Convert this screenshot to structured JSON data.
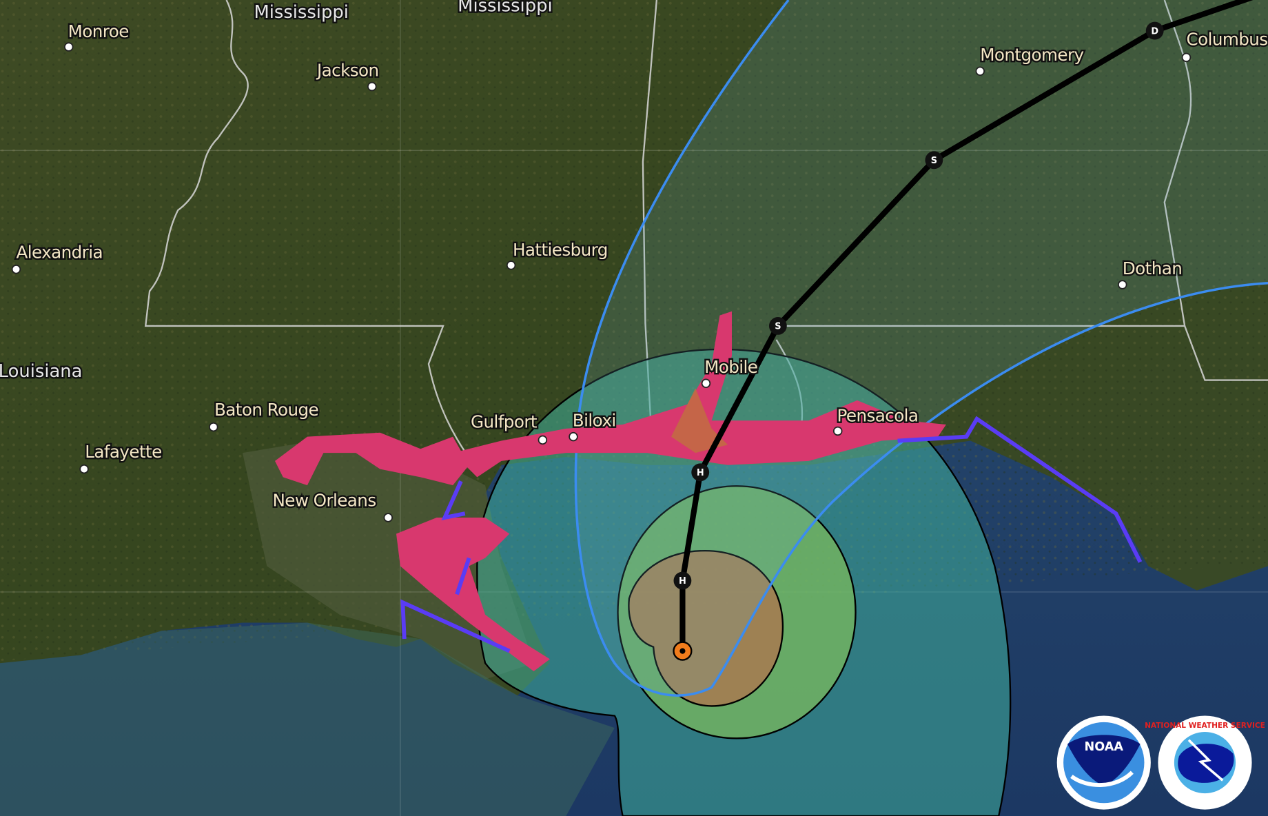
{
  "map": {
    "state_labels": [
      "Mississippi",
      "Mississippi",
      "Louisiana"
    ],
    "cities": [
      "Monroe",
      "Jackson",
      "Hattiesburg",
      "Alexandria",
      "Baton Rouge",
      "Lafayette",
      "New Orleans",
      "Gulfport",
      "Biloxi",
      "Mobile",
      "Pensacola",
      "Dothan",
      "Montgomery",
      "Columbus"
    ],
    "track_points": [
      "H",
      "H",
      "S",
      "S",
      "D"
    ],
    "colors": {
      "cone_outline": "#3b8cf0",
      "track": "#000000",
      "tropical_storm_wind": "#3fae9a",
      "fifty_kt_wind": "#7ab95c",
      "hurricane_wind": "#b07a4a",
      "storm_surge": "#d8386e",
      "warning": "#5a3cf5",
      "current_position": "#f07c1c"
    }
  },
  "logos": {
    "noaa": "NOAA",
    "nws": "NATIONAL WEATHER SERVICE"
  }
}
